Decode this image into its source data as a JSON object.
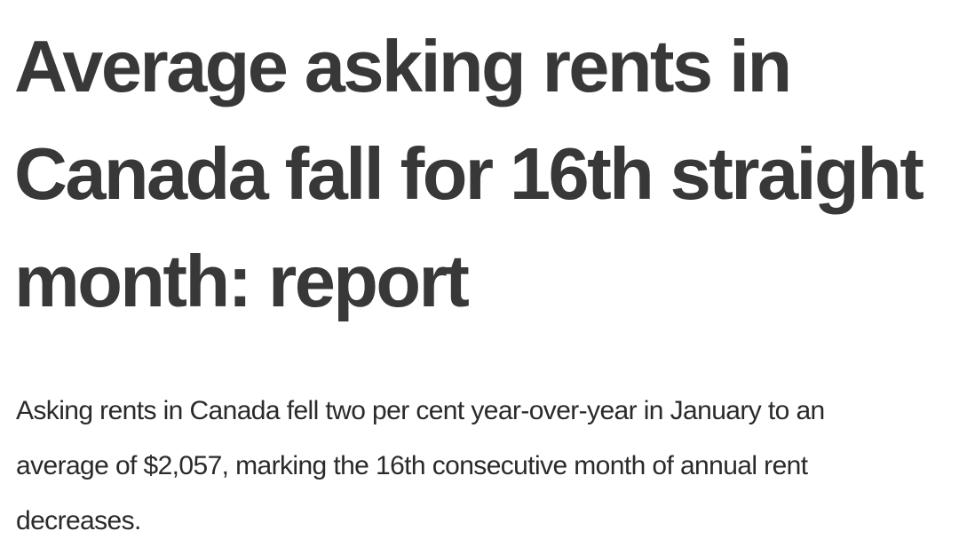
{
  "article": {
    "headline": "Average asking rents in Canada fall for 16th straight month: report",
    "summary": "Asking rents in Canada fell two per cent year-over-year in January to an average of $2,057, marking the 16th consecutive month of annual rent decreases."
  },
  "colors": {
    "headline_text": "#383838",
    "body_text": "#2a2a2a",
    "background": "#ffffff"
  }
}
